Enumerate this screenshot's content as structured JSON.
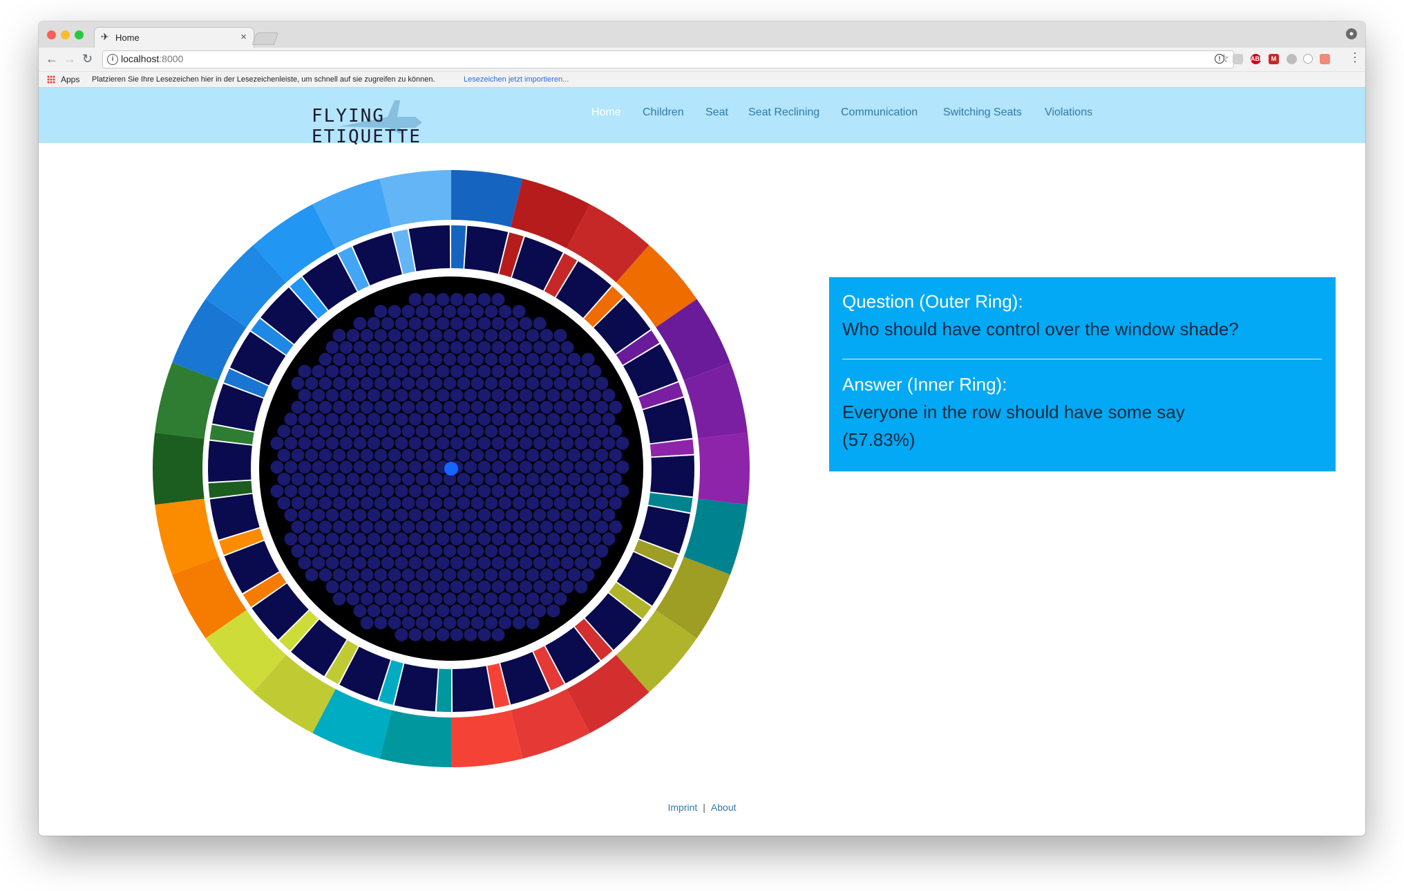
{
  "browser": {
    "tab_title": "Home",
    "tab_close": "×",
    "url_host": "localhost",
    "url_port": ":8000",
    "apps_label": "Apps",
    "bookmarks_hint": "Platzieren Sie Ihre Lesezeichen hier in der Lesezeichenleiste, um schnell auf sie zugreifen zu können.",
    "bookmarks_import": "Lesezeichen jetzt importieren..."
  },
  "site": {
    "logo": "FLYING ETIQUETTE",
    "nav": [
      "Home",
      "Children",
      "Seat",
      "Seat Reclining",
      "Communication",
      "Switching Seats",
      "Violations"
    ],
    "active_nav": "Home"
  },
  "info": {
    "question_heading": "Question (Outer Ring):",
    "question_text": "Who should have control over the window shade?",
    "answer_heading": "Answer (Inner Ring):",
    "answer_text": "Everyone in the row should have some say",
    "answer_percent": "(57.83%)"
  },
  "footer": {
    "imprint": "Imprint",
    "separator": "|",
    "about": "About"
  },
  "colors": {
    "nav_bg": "#b3e5fc",
    "info_bg": "#03a9f4",
    "inner_segment": "#0a0a4e",
    "dot_fill": "#1a1a6e",
    "highlight_dot": "#1565ff",
    "outer_ring": [
      "#1565c0",
      "#b71c1c",
      "#c62828",
      "#ef6c00",
      "#6a1b9a",
      "#7b1fa2",
      "#8e24aa",
      "#00838f",
      "#9e9d24",
      "#afb42b",
      "#d32f2f",
      "#e53935",
      "#f44336",
      "#00979e",
      "#00acc1",
      "#c0ca33",
      "#cddc39",
      "#f57c00",
      "#fb8c00",
      "#1b5e20",
      "#2e7d32",
      "#1976d2",
      "#1e88e5",
      "#2196f3",
      "#42a5f5",
      "#64b5f6"
    ]
  }
}
